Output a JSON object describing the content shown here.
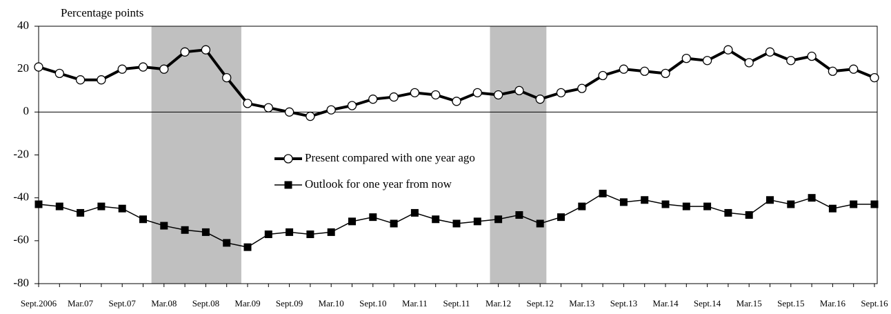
{
  "chart_data": {
    "type": "line",
    "y_label": "Percentage points",
    "categories": [
      "Sept.2006",
      null,
      "Mar.07",
      null,
      "Sept.07",
      null,
      "Mar.08",
      null,
      "Sept.08",
      null,
      "Mar.09",
      null,
      "Sept.09",
      null,
      "Mar.10",
      null,
      "Sept.10",
      null,
      "Mar.11",
      null,
      "Sept.11",
      null,
      "Mar.12",
      null,
      "Sept.12",
      null,
      "Mar.13",
      null,
      "Sept.13",
      null,
      "Mar.14",
      null,
      "Sept.14",
      null,
      "Mar.15",
      null,
      "Sept.15",
      null,
      "Mar.16",
      null,
      "Sept.16"
    ],
    "series": [
      {
        "name": "Present compared with one year ago",
        "color": "#000000",
        "marker": "circle",
        "values": [
          21,
          18,
          15,
          15,
          20,
          21,
          20,
          28,
          29,
          16,
          4,
          2,
          0,
          -2,
          1,
          3,
          6,
          7,
          9,
          8,
          5,
          9,
          8,
          10,
          6,
          9,
          11,
          17,
          20,
          19,
          18,
          25,
          24,
          29,
          23,
          28,
          24,
          26,
          19,
          20,
          16
        ]
      },
      {
        "name": "Outlook for one year from now",
        "color": "#000000",
        "marker": "square",
        "values": [
          -43,
          -44,
          -47,
          -44,
          -45,
          -50,
          -53,
          -55,
          -56,
          -61,
          -63,
          -57,
          -56,
          -57,
          -56,
          -51,
          -49,
          -52,
          -47,
          -50,
          -52,
          -51,
          -50,
          -48,
          -52,
          -49,
          -44,
          -38,
          -42,
          -41,
          -43,
          -44,
          -44,
          -47,
          -48,
          -41,
          -43,
          -40,
          -45,
          -43,
          -43
        ]
      }
    ],
    "shaded_regions": [
      [
        5.4,
        9.7
      ],
      [
        21.6,
        24.3
      ]
    ],
    "shade_color": "#c0c0c0",
    "ylim": [
      -80,
      40
    ],
    "yticks": [
      -80,
      -60,
      -40,
      -20,
      0,
      20,
      40
    ],
    "zero_line": true
  }
}
